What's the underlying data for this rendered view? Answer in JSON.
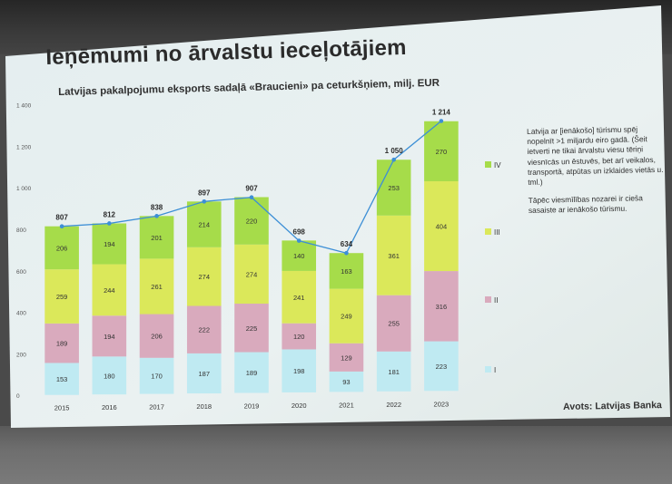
{
  "slide": {
    "title": "Ieņēmumi no ārvalstu ieceļotājiem",
    "subtitle": "Latvijas pakalpojumu eksports sadaļā «Braucieni» pa ceturkšņiem, milj. EUR",
    "note_p1": "Latvija ar [ienākošo] tūrismu spēj nopelnīt >1 miljardu eiro gadā. (Šeit ietverti ne tikai ārvalstu viesu tēriņi viesnīcās un ēstuvēs, bet arī veikalos, transportā, atpūtas un izklaides vietās u. tml.)",
    "note_p2": "Tāpēc viesmīlības nozarei ir cieša sasaiste ar ienākošo tūrismu.",
    "source": "Avots: Latvijas Banka"
  },
  "chart_data": {
    "type": "bar",
    "stacked": true,
    "categories": [
      "2015",
      "2016",
      "2017",
      "2018",
      "2019",
      "2020",
      "2021",
      "2022",
      "2023"
    ],
    "series": [
      {
        "name": "I",
        "values": [
          153,
          180,
          170,
          187,
          189,
          198,
          93,
          181,
          223
        ],
        "color": "#bfeaf2"
      },
      {
        "name": "II",
        "values": [
          189,
          194,
          206,
          222,
          225,
          120,
          129,
          255,
          316
        ],
        "color": "#d9aabd"
      },
      {
        "name": "III",
        "values": [
          259,
          244,
          261,
          274,
          274,
          241,
          249,
          361,
          404
        ],
        "color": "#dbe85a"
      },
      {
        "name": "IV",
        "values": [
          206,
          194,
          201,
          214,
          220,
          140,
          163,
          253,
          270
        ],
        "color": "#a6dc4a"
      }
    ],
    "totals": [
      "807",
      "812",
      "838",
      "897",
      "907",
      "698",
      "634",
      "1 050",
      "1 214"
    ],
    "total_values": [
      807,
      812,
      838,
      897,
      907,
      698,
      634,
      1050,
      1214
    ],
    "line_color": "#3d8fd6",
    "ylim": [
      0,
      1400
    ],
    "yticks": [
      "0",
      "200",
      "400",
      "600",
      "800",
      "1 000",
      "1 200",
      "1 400"
    ],
    "ytick_values": [
      0,
      200,
      400,
      600,
      800,
      1000,
      1200,
      1400
    ],
    "legend": [
      "IV",
      "III",
      "II",
      "I"
    ],
    "legend_placement": "right",
    "grid": false
  }
}
